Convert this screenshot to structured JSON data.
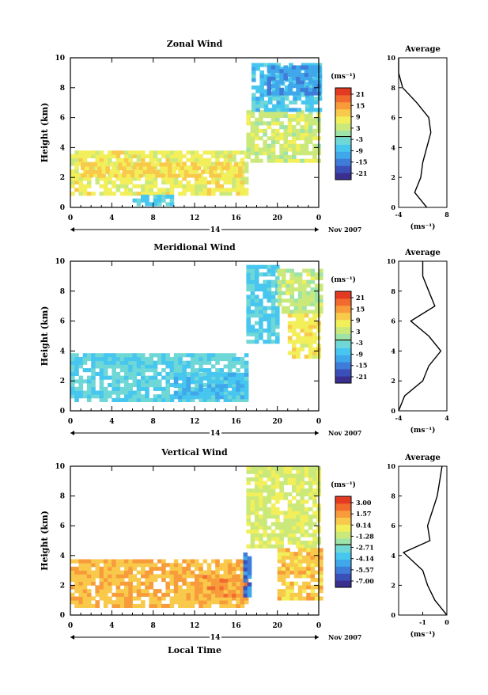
{
  "colormap": [
    "#3a2f8f",
    "#3b4fb8",
    "#3f7bd8",
    "#3fa7ea",
    "#47c6ef",
    "#6fd8d7",
    "#9ee3a8",
    "#cbe97a",
    "#f2ef5a",
    "#f8c94a",
    "#f79b3b",
    "#f26b2e",
    "#e33a22"
  ],
  "shared": {
    "x_ticks": [
      "0",
      "4",
      "8",
      "12",
      "16",
      "20",
      "0"
    ],
    "day_label": "14",
    "month_label": "Nov 2007",
    "ylabel": "Height (km)",
    "y_ticks": [
      "0",
      "2",
      "4",
      "6",
      "8",
      "10"
    ],
    "unit_label": "(ms⁻¹)",
    "average_title": "Average",
    "avg_xlabel": "(ms⁻¹)"
  },
  "chart_data": [
    {
      "type": "heatmap",
      "title": "Zonal Wind",
      "xlabel": "",
      "ylabel": "Height (km)",
      "xlim": [
        0,
        24
      ],
      "ylim": [
        0,
        10
      ],
      "colorbar_ticks": [
        "21",
        "15",
        "9",
        "3",
        "-3",
        "-9",
        "-15",
        "-21"
      ],
      "colorbar_range": [
        -24,
        24
      ],
      "regions": [
        {
          "x": [
            0,
            17
          ],
          "y": [
            0.8,
            3.6
          ],
          "v": 7
        },
        {
          "x": [
            1,
            16.5
          ],
          "y": [
            2.0,
            2.8
          ],
          "v": 10
        },
        {
          "x": [
            6,
            10
          ],
          "y": [
            0.1,
            0.7
          ],
          "v": -6
        },
        {
          "x": [
            17,
            24
          ],
          "y": [
            3.0,
            6.4
          ],
          "v": 4
        },
        {
          "x": [
            17.5,
            24
          ],
          "y": [
            6.4,
            9.6
          ],
          "v": -7
        },
        {
          "x": [
            19,
            24
          ],
          "y": [
            7.5,
            9.3
          ],
          "v": -12
        }
      ],
      "average": {
        "xlim": [
          -4,
          8
        ],
        "xticks": [
          "-4",
          "8"
        ],
        "profile": [
          [
            3,
            0
          ],
          [
            0,
            1
          ],
          [
            1.5,
            2
          ],
          [
            2,
            3
          ],
          [
            3,
            4
          ],
          [
            4,
            5
          ],
          [
            3.5,
            6
          ],
          [
            0.5,
            7
          ],
          [
            -3,
            8
          ],
          [
            -4,
            9
          ],
          [
            -4,
            10
          ]
        ]
      }
    },
    {
      "type": "heatmap",
      "title": "Meridional Wind",
      "xlabel": "",
      "ylabel": "Height (km)",
      "xlim": [
        0,
        24
      ],
      "ylim": [
        0,
        10
      ],
      "colorbar_ticks": [
        "21",
        "15",
        "9",
        "3",
        "-3",
        "-9",
        "-15",
        "-21"
      ],
      "colorbar_range": [
        -24,
        24
      ],
      "regions": [
        {
          "x": [
            0,
            17
          ],
          "y": [
            0.6,
            3.7
          ],
          "v": -5
        },
        {
          "x": [
            10,
            17
          ],
          "y": [
            0.8,
            2.4
          ],
          "v": -8
        },
        {
          "x": [
            17,
            20
          ],
          "y": [
            4.5,
            9.6
          ],
          "v": -6
        },
        {
          "x": [
            20,
            24
          ],
          "y": [
            6.5,
            9.3
          ],
          "v": 3
        },
        {
          "x": [
            21,
            24
          ],
          "y": [
            3.5,
            6.5
          ],
          "v": 8
        }
      ],
      "average": {
        "xlim": [
          -4,
          4
        ],
        "xticks": [
          "-4",
          "4"
        ],
        "profile": [
          [
            -4,
            0
          ],
          [
            -3,
            1
          ],
          [
            0,
            2
          ],
          [
            1,
            3
          ],
          [
            3,
            4
          ],
          [
            1,
            5
          ],
          [
            -2,
            6
          ],
          [
            2,
            7
          ],
          [
            1,
            8
          ],
          [
            0,
            9
          ],
          [
            0,
            10
          ]
        ]
      }
    },
    {
      "type": "heatmap",
      "title": "Vertical Wind",
      "xlabel": "Local Time",
      "ylabel": "Height (km)",
      "xlim": [
        0,
        24
      ],
      "ylim": [
        0,
        10
      ],
      "colorbar_ticks": [
        "3.00",
        "1.57",
        "0.14",
        "-1.28",
        "-2.71",
        "-4.14",
        "-5.57",
        "-7.00"
      ],
      "colorbar_range": [
        -7.7,
        3.7
      ],
      "regions": [
        {
          "x": [
            0,
            17
          ],
          "y": [
            0.5,
            3.6
          ],
          "v": 0.9
        },
        {
          "x": [
            12,
            17
          ],
          "y": [
            1.2,
            2.6
          ],
          "v": 1.4
        },
        {
          "x": [
            16.7,
            17.3
          ],
          "y": [
            1.2,
            4.2
          ],
          "v": -5.5
        },
        {
          "x": [
            17,
            24
          ],
          "y": [
            4.5,
            9.8
          ],
          "v": -0.8
        },
        {
          "x": [
            20,
            24
          ],
          "y": [
            1.0,
            4.5
          ],
          "v": 0.6
        }
      ],
      "average": {
        "xlim": [
          -2,
          0
        ],
        "xticks": [
          "-1",
          "0"
        ],
        "profile": [
          [
            0,
            0
          ],
          [
            -0.5,
            1
          ],
          [
            -0.8,
            2
          ],
          [
            -1.0,
            3
          ],
          [
            -1.8,
            4.2
          ],
          [
            -0.7,
            5
          ],
          [
            -0.8,
            6
          ],
          [
            -0.6,
            7
          ],
          [
            -0.4,
            8
          ],
          [
            -0.3,
            9
          ],
          [
            -0.2,
            10
          ]
        ]
      }
    }
  ]
}
